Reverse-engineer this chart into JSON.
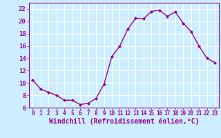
{
  "x": [
    0,
    1,
    2,
    3,
    4,
    5,
    6,
    7,
    8,
    9,
    10,
    11,
    12,
    13,
    14,
    15,
    16,
    17,
    18,
    19,
    20,
    21,
    22,
    23
  ],
  "y": [
    10.5,
    9.0,
    8.5,
    8.0,
    7.2,
    7.2,
    6.5,
    6.7,
    7.5,
    9.8,
    14.3,
    16.0,
    18.7,
    20.5,
    20.4,
    21.6,
    21.8,
    20.8,
    21.5,
    19.7,
    18.3,
    16.0,
    14.0,
    13.3
  ],
  "line_color": "#990099",
  "marker": "D",
  "marker_size": 2.0,
  "bg_color": "#cceeff",
  "grid_color": "#ffffff",
  "xlabel": "Windchill (Refroidissement éolien,°C)",
  "xlabel_color": "#990099",
  "ylim": [
    6,
    23
  ],
  "xlim": [
    -0.5,
    23.5
  ],
  "yticks": [
    6,
    8,
    10,
    12,
    14,
    16,
    18,
    20,
    22
  ],
  "xticks": [
    0,
    1,
    2,
    3,
    4,
    5,
    6,
    7,
    8,
    9,
    10,
    11,
    12,
    13,
    14,
    15,
    16,
    17,
    18,
    19,
    20,
    21,
    22,
    23
  ],
  "tick_color": "#990099",
  "ytick_fontsize": 6.5,
  "xtick_fontsize": 5.5,
  "xlabel_fontsize": 7.0,
  "spine_color": "#990099",
  "linewidth": 1.0
}
